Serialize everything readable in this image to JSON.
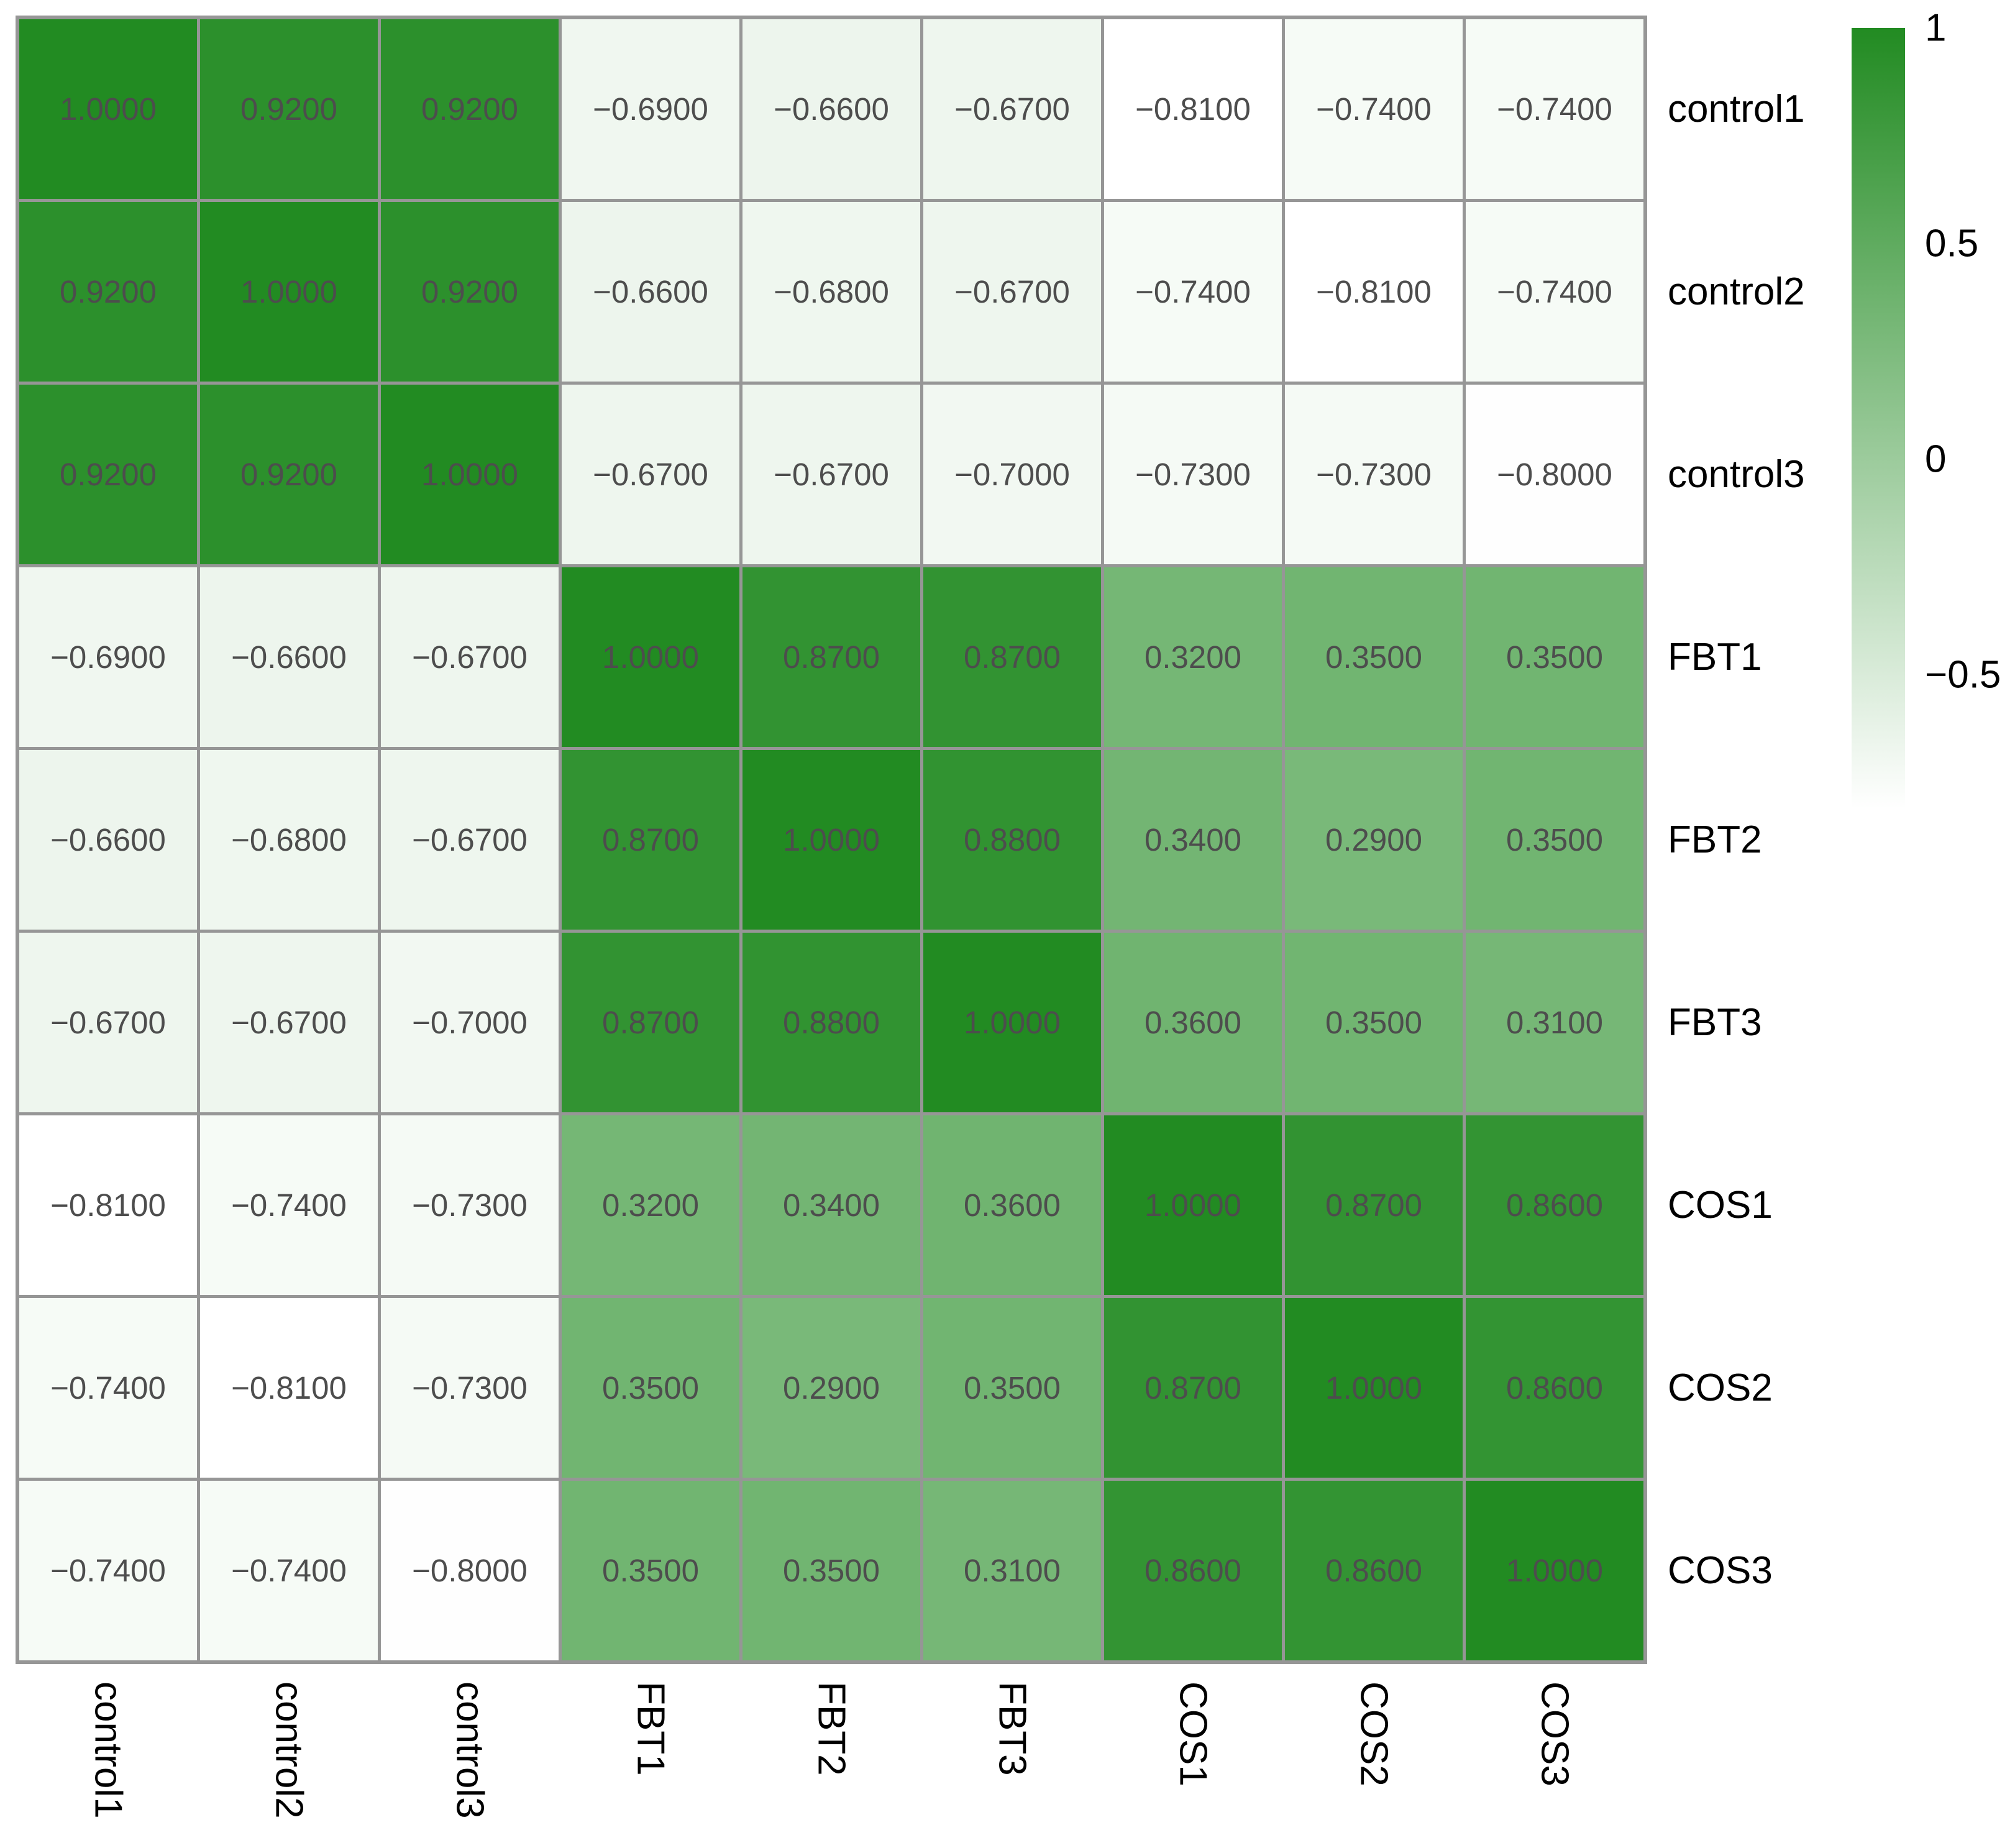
{
  "chart_data": {
    "type": "heatmap",
    "title": "",
    "rows": [
      "control1",
      "control2",
      "control3",
      "FBT1",
      "FBT2",
      "FBT3",
      "COS1",
      "COS2",
      "COS3"
    ],
    "columns": [
      "control1",
      "control2",
      "control3",
      "FBT1",
      "FBT2",
      "FBT3",
      "COS1",
      "COS2",
      "COS3"
    ],
    "values": [
      [
        1.0,
        0.92,
        0.92,
        -0.69,
        -0.66,
        -0.67,
        -0.81,
        -0.74,
        -0.74
      ],
      [
        0.92,
        1.0,
        0.92,
        -0.66,
        -0.68,
        -0.67,
        -0.74,
        -0.81,
        -0.74
      ],
      [
        0.92,
        0.92,
        1.0,
        -0.67,
        -0.67,
        -0.7,
        -0.73,
        -0.73,
        -0.8
      ],
      [
        -0.69,
        -0.66,
        -0.67,
        1.0,
        0.87,
        0.87,
        0.32,
        0.35,
        0.35
      ],
      [
        -0.66,
        -0.68,
        -0.67,
        0.87,
        1.0,
        0.88,
        0.34,
        0.29,
        0.35
      ],
      [
        -0.67,
        -0.67,
        -0.7,
        0.87,
        0.88,
        1.0,
        0.36,
        0.35,
        0.31
      ],
      [
        -0.81,
        -0.74,
        -0.73,
        0.32,
        0.34,
        0.36,
        1.0,
        0.87,
        0.86
      ],
      [
        -0.74,
        -0.81,
        -0.73,
        0.35,
        0.29,
        0.35,
        0.87,
        1.0,
        0.86
      ],
      [
        -0.74,
        -0.74,
        -0.8,
        0.35,
        0.35,
        0.31,
        0.86,
        0.86,
        1.0
      ]
    ],
    "value_decimals": 4,
    "cell_example_labels": [
      "1.0000",
      "0.9200",
      "−0.6900",
      "−0.8100",
      "0.3500"
    ],
    "color_scale": {
      "min_value": -0.81,
      "max_value": 1,
      "min_color": "#FFFFFF",
      "max_color": "#228B22"
    },
    "legend": {
      "position": "right",
      "tick_values": [
        1,
        0.5,
        0,
        -0.5
      ],
      "tick_labels": [
        "1",
        "0.5",
        "0",
        "−0.5"
      ]
    },
    "style": {
      "grid_line_color": "#969696",
      "cell_text_color": "#4D4D4D",
      "axis_label_color": "#000000",
      "background_color": "#FFFFFF"
    },
    "layout_hints": {
      "grid": "9x9 square cells with gray gridlines",
      "row_labels": "right side, horizontal",
      "column_labels": "bottom, rotated 90deg clockwise",
      "colorbar": "top right, vertical gradient green(1) to white"
    }
  }
}
